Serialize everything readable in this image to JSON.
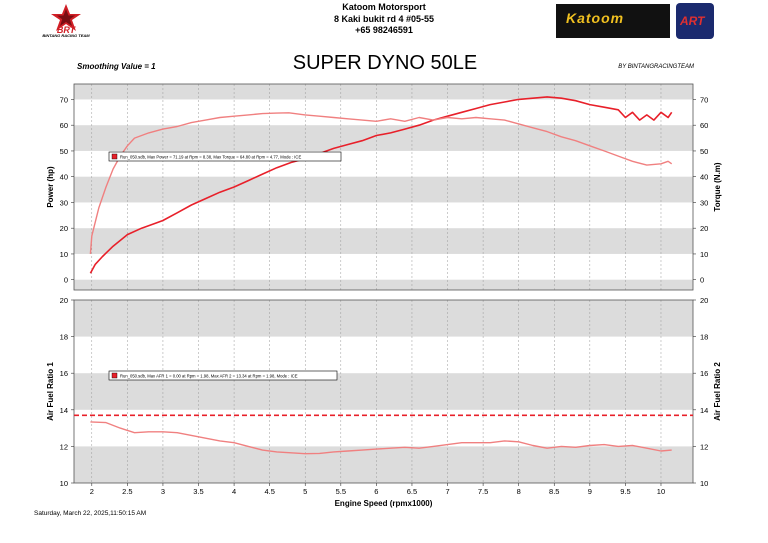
{
  "header": {
    "company_name": "Katoom Motorsport",
    "company_address": "8 Kaki bukit rd 4 #05-55",
    "company_phone": "+65 98246591",
    "left_logo": "bintang-racing-team-logo",
    "left_logo_text": "BINTANG RACING TEAM",
    "right_logo": "katoom-logo",
    "right_logo_text": "Katoom",
    "art_logo": "art-logo",
    "art_logo_text": "ART"
  },
  "smoothing_label": "Smoothing Value = 1",
  "byline": "BY BINTANGRACINGTEAM",
  "timestamp": "Saturday, March 22, 2025,11:50:15 AM",
  "colors": {
    "power": "#e8202a",
    "torque": "#f08080",
    "afr": "#f08080",
    "target": "#e8202a",
    "band": "#dcdcdc"
  },
  "chart_data": [
    {
      "type": "line",
      "title": "SUPER DYNO 50LE",
      "xlabel": "Engine Speed (rpmx1000)",
      "ylabel": "Power (hp)",
      "y2label": "Torque (N.m)",
      "xlim": [
        1.75,
        10.45
      ],
      "ylim": [
        -4,
        76
      ],
      "y2lim": [
        -4,
        76
      ],
      "xticks": [
        "2",
        "2.5",
        "3",
        "3.5",
        "4",
        "4.5",
        "5",
        "5.5",
        "6",
        "6.5",
        "7",
        "7.5",
        "8",
        "8.5",
        "9",
        "9.5",
        "10"
      ],
      "yticks": [
        "0",
        "10",
        "20",
        "30",
        "40",
        "50",
        "60",
        "70"
      ],
      "y2ticks": [
        "0",
        "10",
        "20",
        "30",
        "40",
        "50",
        "60",
        "70"
      ],
      "grid": true,
      "legend": "Run_050.sdb, Max Power = 71.19 at Rpm = 8.38, Max Torque = 64.80 at Rpm = 4.77, Mode : ICE",
      "series": [
        {
          "name": "Power",
          "axis": "left",
          "x": [
            1.98,
            2.05,
            2.15,
            2.3,
            2.5,
            2.7,
            2.9,
            3.0,
            3.2,
            3.4,
            3.6,
            3.8,
            4.0,
            4.2,
            4.4,
            4.6,
            4.8,
            5.0,
            5.2,
            5.4,
            5.6,
            5.8,
            6.0,
            6.2,
            6.4,
            6.6,
            6.8,
            7.0,
            7.2,
            7.4,
            7.6,
            7.8,
            8.0,
            8.2,
            8.4,
            8.6,
            8.8,
            9.0,
            9.2,
            9.4,
            9.5,
            9.6,
            9.7,
            9.8,
            9.9,
            10.0,
            10.1,
            10.15
          ],
          "y": [
            2.5,
            6,
            9,
            13,
            17.5,
            20,
            22,
            23,
            26,
            29,
            31.5,
            34,
            36,
            38.5,
            41,
            43.5,
            45.5,
            47,
            49,
            51,
            52.5,
            54,
            56,
            57,
            58.5,
            60,
            62,
            63.5,
            65,
            66.5,
            68,
            69,
            70,
            70.5,
            71,
            70.5,
            69.5,
            68,
            67,
            66,
            63,
            65,
            62,
            64,
            62,
            65,
            63,
            65
          ]
        },
        {
          "name": "Torque",
          "axis": "right",
          "x": [
            1.98,
            2.0,
            2.1,
            2.2,
            2.3,
            2.4,
            2.5,
            2.6,
            2.8,
            3.0,
            3.2,
            3.4,
            3.6,
            3.8,
            4.0,
            4.2,
            4.4,
            4.6,
            4.77,
            5.0,
            5.2,
            5.4,
            5.6,
            5.8,
            6.0,
            6.2,
            6.4,
            6.6,
            6.8,
            7.0,
            7.2,
            7.4,
            7.6,
            7.8,
            8.0,
            8.2,
            8.4,
            8.6,
            8.8,
            9.0,
            9.2,
            9.4,
            9.6,
            9.8,
            10.0,
            10.1,
            10.15
          ],
          "y": [
            10,
            17,
            28,
            36,
            43,
            48,
            52,
            55,
            57,
            58.5,
            59.5,
            61,
            62,
            63,
            63.5,
            64,
            64.5,
            64.7,
            64.8,
            64,
            63.5,
            63,
            62.5,
            62,
            61.5,
            62.5,
            61.5,
            63,
            62,
            63,
            62.5,
            63,
            62.5,
            62,
            60.5,
            59,
            57.5,
            55.5,
            54,
            52,
            50,
            48,
            46,
            44.5,
            45,
            46,
            45
          ]
        }
      ]
    },
    {
      "type": "line",
      "xlabel": "Engine Speed (rpmx1000)",
      "ylabel": "Air Fuel Ratio 1",
      "y2label": "Air Fuel Ratio 2",
      "xlim": [
        1.75,
        10.45
      ],
      "ylim": [
        10,
        20
      ],
      "y2lim": [
        10,
        20
      ],
      "xticks": [
        "2",
        "2.5",
        "3",
        "3.5",
        "4",
        "4.5",
        "5",
        "5.5",
        "6",
        "6.5",
        "7",
        "7.5",
        "8",
        "8.5",
        "9",
        "9.5",
        "10"
      ],
      "yticks": [
        "10",
        "12",
        "14",
        "16",
        "18",
        "20"
      ],
      "y2ticks": [
        "10",
        "12",
        "14",
        "16",
        "18",
        "20"
      ],
      "grid": true,
      "legend": "Run_050.sdb, Max AFR 1 = 0.00 at Rpm = 1.98, Max AFR 2 = 13.34 at Rpm = 1.98, Mode : ICE",
      "target_afr": 13.7,
      "series": [
        {
          "name": "AFR 2",
          "x": [
            1.98,
            2.2,
            2.4,
            2.6,
            2.8,
            3.0,
            3.2,
            3.4,
            3.6,
            3.8,
            4.0,
            4.2,
            4.4,
            4.6,
            4.8,
            5.0,
            5.2,
            5.4,
            5.6,
            5.8,
            6.0,
            6.2,
            6.4,
            6.6,
            6.8,
            7.0,
            7.2,
            7.4,
            7.6,
            7.8,
            8.0,
            8.2,
            8.4,
            8.6,
            8.8,
            9.0,
            9.2,
            9.4,
            9.6,
            9.8,
            10.0,
            10.15
          ],
          "y": [
            13.34,
            13.3,
            13.0,
            12.75,
            12.8,
            12.8,
            12.75,
            12.6,
            12.45,
            12.3,
            12.2,
            12.0,
            11.8,
            11.7,
            11.65,
            11.6,
            11.62,
            11.7,
            11.75,
            11.8,
            11.85,
            11.9,
            11.95,
            11.9,
            12.0,
            12.1,
            12.2,
            12.2,
            12.2,
            12.3,
            12.25,
            12.05,
            11.9,
            12.0,
            11.95,
            12.05,
            12.1,
            12.0,
            12.05,
            11.9,
            11.75,
            11.8
          ]
        }
      ]
    }
  ]
}
